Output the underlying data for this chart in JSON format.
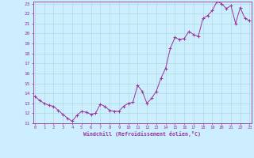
{
  "x": [
    0,
    0.5,
    1,
    1.5,
    2,
    2.5,
    3,
    3.5,
    4,
    4.5,
    5,
    5.5,
    6,
    6.5,
    7,
    7.5,
    8,
    8.5,
    9,
    9.5,
    10,
    10.5,
    11,
    11.5,
    12,
    12.5,
    13,
    13.5,
    14,
    14.5,
    15,
    15.5,
    16,
    16.5,
    17,
    17.5,
    18,
    18.5,
    19,
    19.5,
    20,
    20.5,
    21,
    21.5,
    22,
    22.5,
    23
  ],
  "y": [
    13.7,
    13.3,
    13.0,
    12.8,
    12.7,
    12.3,
    11.9,
    11.5,
    11.2,
    11.8,
    12.2,
    12.1,
    11.9,
    12.0,
    12.9,
    12.7,
    12.3,
    12.2,
    12.2,
    12.7,
    13.0,
    13.1,
    14.8,
    14.2,
    13.0,
    13.5,
    14.2,
    15.5,
    16.5,
    18.5,
    19.6,
    19.4,
    19.5,
    20.2,
    19.9,
    19.7,
    21.5,
    21.8,
    22.3,
    23.2,
    23.0,
    22.5,
    22.8,
    21.0,
    22.6,
    21.5,
    21.3
  ],
  "xlabel": "Windchill (Refroidissement éolien,°C)",
  "ylim": [
    11,
    23
  ],
  "xlim": [
    0,
    23
  ],
  "yticks": [
    11,
    12,
    13,
    14,
    15,
    16,
    17,
    18,
    19,
    20,
    21,
    22,
    23
  ],
  "xticks": [
    0,
    1,
    2,
    3,
    4,
    5,
    6,
    7,
    8,
    9,
    10,
    11,
    12,
    13,
    14,
    15,
    16,
    17,
    18,
    19,
    20,
    21,
    22,
    23
  ],
  "line_color": "#993399",
  "marker": "+",
  "bg_color": "#cceeff",
  "grid_color": "#aadddd",
  "axis_label_color": "#993399",
  "tick_label_color": "#993399"
}
